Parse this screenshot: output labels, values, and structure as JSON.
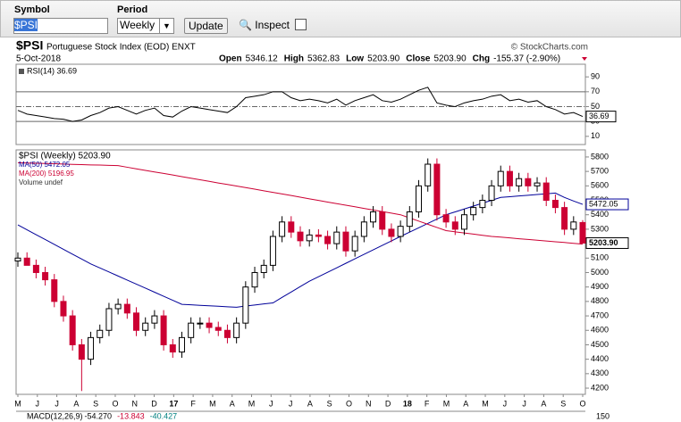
{
  "toolbar": {
    "symbol_label": "Symbol",
    "symbol": "$PSI",
    "period_label": "Period",
    "period": "Weekly",
    "update": "Update",
    "inspect": "Inspect"
  },
  "header": {
    "ticker": "$PSI",
    "name": "Portuguese Stock Index (EOD) ENXT",
    "source": "© StockCharts.com",
    "date": "5-Oct-2018",
    "quote": [
      {
        "label": "Open",
        "value": "5346.12"
      },
      {
        "label": "High",
        "value": "5362.83"
      },
      {
        "label": "Low",
        "value": "5203.90"
      },
      {
        "label": "Close",
        "value": "5203.90"
      },
      {
        "label": "Chg",
        "value": "-155.37 (-2.90%)"
      }
    ]
  },
  "chart_data": [
    {
      "type": "line",
      "title": "RSI(14) 36.69",
      "ylim": [
        -1,
        107
      ],
      "yticks": [
        10,
        30,
        50,
        70,
        90
      ],
      "levels": [
        30,
        50,
        70
      ],
      "color": "#000000",
      "values": [
        45,
        40,
        38,
        36,
        34,
        33,
        30,
        32,
        38,
        42,
        48,
        50,
        45,
        40,
        45,
        48,
        38,
        36,
        44,
        50,
        48,
        46,
        44,
        42,
        50,
        62,
        64,
        66,
        70,
        70,
        62,
        58,
        60,
        58,
        55,
        60,
        52,
        58,
        62,
        66,
        58,
        56,
        60,
        66,
        72,
        76,
        55,
        52,
        50,
        55,
        58,
        60,
        64,
        66,
        58,
        60,
        56,
        58,
        50,
        46,
        40,
        42,
        36.69
      ]
    },
    {
      "type": "candlestick",
      "ylim": [
        4157,
        5849
      ],
      "yticks": [
        4200,
        4300,
        4400,
        4500,
        4600,
        4700,
        4800,
        4900,
        5000,
        5100,
        5200,
        5300,
        5400,
        5500,
        5600,
        5700,
        5800
      ],
      "last_label": "5203.90",
      "notes": [
        "Volume undef"
      ],
      "xtick_labels": [
        "M",
        "J",
        "J",
        "A",
        "S",
        "O",
        "N",
        "D",
        "17",
        "F",
        "M",
        "A",
        "M",
        "J",
        "J",
        "A",
        "S",
        "O",
        "N",
        "D",
        "18",
        "F",
        "M",
        "A",
        "M",
        "J",
        "J",
        "A",
        "S",
        "O"
      ],
      "series": [
        {
          "name": "$PSI (Weekly) 5203.90",
          "up_color": "#000000",
          "down_color": "#cc0033",
          "open": [
            5080,
            5100,
            5050,
            5000,
            4950,
            4800,
            4700,
            4500,
            4400,
            4550,
            4600,
            4750,
            4780,
            4720,
            4600,
            4650,
            4700,
            4500,
            4450,
            4550,
            4650,
            4650,
            4620,
            4600,
            4550,
            4650,
            4900,
            5000,
            5050,
            5250,
            5350,
            5280,
            5220,
            5260,
            5250,
            5200,
            5280,
            5150,
            5250,
            5350,
            5420,
            5300,
            5250,
            5320,
            5420,
            5600,
            5750,
            5400,
            5350,
            5300,
            5400,
            5450,
            5500,
            5600,
            5700,
            5600,
            5650,
            5600,
            5620,
            5500,
            5450,
            5300,
            5346.12
          ],
          "high": [
            5140,
            5140,
            5090,
            5040,
            4990,
            4840,
            4740,
            4540,
            4590,
            4640,
            4790,
            4820,
            4820,
            4760,
            4690,
            4740,
            4740,
            4540,
            4590,
            4690,
            4690,
            4690,
            4660,
            4640,
            4690,
            4940,
            5040,
            5090,
            5290,
            5390,
            5390,
            5320,
            5300,
            5300,
            5290,
            5320,
            5320,
            5290,
            5390,
            5460,
            5460,
            5340,
            5360,
            5460,
            5640,
            5790,
            5790,
            5440,
            5390,
            5440,
            5490,
            5540,
            5640,
            5740,
            5740,
            5690,
            5690,
            5660,
            5660,
            5540,
            5490,
            5390,
            5362.83
          ],
          "low": [
            5040,
            5060,
            4960,
            4910,
            4760,
            4660,
            4460,
            4180,
            4360,
            4510,
            4560,
            4710,
            4680,
            4560,
            4560,
            4610,
            4460,
            4410,
            4410,
            4510,
            4610,
            4580,
            4560,
            4510,
            4510,
            4610,
            4860,
            4960,
            5010,
            5210,
            5240,
            5180,
            5180,
            5210,
            5160,
            5160,
            5110,
            5110,
            5210,
            5310,
            5260,
            5210,
            5210,
            5280,
            5380,
            5560,
            5360,
            5310,
            5260,
            5260,
            5360,
            5410,
            5460,
            5560,
            5560,
            5560,
            5560,
            5560,
            5460,
            5410,
            5260,
            5260,
            5203.9
          ],
          "close": [
            5100,
            5050,
            5000,
            4950,
            4800,
            4700,
            4500,
            4400,
            4550,
            4600,
            4750,
            4780,
            4720,
            4600,
            4650,
            4700,
            4500,
            4450,
            4550,
            4650,
            4650,
            4620,
            4600,
            4550,
            4650,
            4900,
            5000,
            5050,
            5250,
            5350,
            5280,
            5220,
            5260,
            5250,
            5200,
            5280,
            5150,
            5250,
            5350,
            5420,
            5300,
            5250,
            5320,
            5420,
            5600,
            5750,
            5400,
            5350,
            5300,
            5400,
            5450,
            5500,
            5600,
            5700,
            5600,
            5650,
            5600,
            5620,
            5500,
            5450,
            5300,
            5350,
            5203.9
          ]
        },
        {
          "name": "MA(50) 5472.05",
          "color": "#000099",
          "values": [
            5330,
            5296,
            5262,
            5229,
            5195,
            5161,
            5127,
            5094,
            5060,
            5032,
            5004,
            4976,
            4948,
            4920,
            4892,
            4864,
            4836,
            4808,
            4780,
            4777,
            4773,
            4770,
            4767,
            4763,
            4760,
            4768,
            4775,
            4783,
            4790,
            4828,
            4865,
            4903,
            4940,
            4971,
            5002,
            5033,
            5064,
            5095,
            5126,
            5157,
            5188,
            5219,
            5250,
            5280,
            5310,
            5340,
            5370,
            5400,
            5420,
            5440,
            5460,
            5480,
            5500,
            5520,
            5525,
            5530,
            5535,
            5540,
            5545,
            5550,
            5520,
            5495,
            5472.05
          ]
        },
        {
          "name": "MA(200) 5196.95",
          "color": "#cc0033",
          "values": [
            5760,
            5758,
            5756,
            5755,
            5753,
            5751,
            5749,
            5747,
            5745,
            5744,
            5742,
            5740,
            5729,
            5718,
            5707,
            5696,
            5686,
            5675,
            5664,
            5653,
            5642,
            5631,
            5620,
            5610,
            5599,
            5588,
            5577,
            5566,
            5555,
            5544,
            5533,
            5522,
            5510,
            5499,
            5488,
            5477,
            5466,
            5455,
            5444,
            5433,
            5422,
            5411,
            5400,
            5378,
            5356,
            5334,
            5312,
            5290,
            5282,
            5274,
            5266,
            5258,
            5250,
            5245,
            5240,
            5234,
            5229,
            5224,
            5218,
            5213,
            5208,
            5202,
            5196.95
          ]
        }
      ]
    },
    {
      "type": "text",
      "title": "MACD(12,26,9)",
      "readings": [
        "-54.270",
        "-13.843",
        "-40.427"
      ],
      "colors": [
        "#000000",
        "#cc0033",
        "#008080"
      ],
      "tick": "150"
    }
  ]
}
